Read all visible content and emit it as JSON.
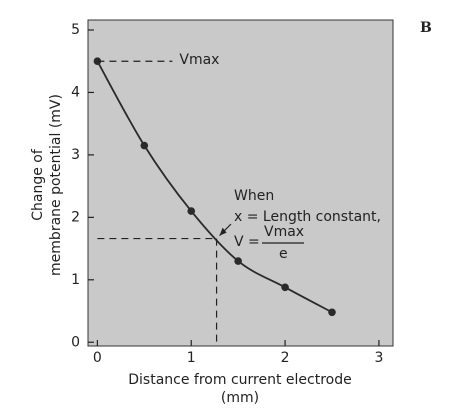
{
  "chart_data": {
    "type": "line",
    "panel_label": "B",
    "y_label": [
      "Change of",
      "membrane potential (mV)"
    ],
    "x_label": [
      "Distance from current electrode",
      "(mm)"
    ],
    "x": [
      0,
      0.5,
      1,
      1.5,
      2,
      2.5
    ],
    "series": [
      {
        "color": "#2a2a2a",
        "values": [
          4.5,
          3.15,
          2.1,
          1.3,
          0.88,
          0.48
        ]
      }
    ],
    "xlim": [
      -0.1,
      3.15
    ],
    "ylim": [
      -0.06,
      5.16
    ],
    "xticks": [
      0,
      1,
      2,
      3
    ],
    "yticks": [
      0,
      1,
      2,
      3,
      4,
      5
    ],
    "background": "#c9c9c9",
    "vmax_label": "Vmax",
    "length_constant": {
      "x": 1.27,
      "y": 1.66,
      "text": [
        "When",
        "x = Length constant,"
      ],
      "v_eq": "V =",
      "numerator": "Vmax",
      "denominator": "e"
    }
  }
}
